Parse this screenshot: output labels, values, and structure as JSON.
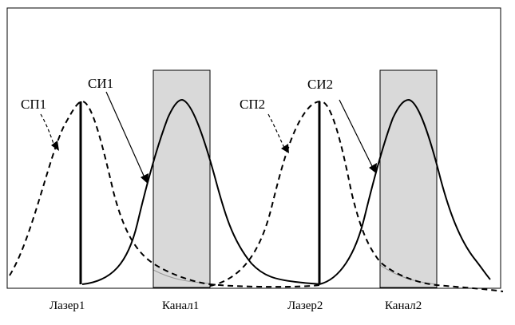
{
  "curves": {
    "sp1_label": "СП1",
    "si1_label": "СИ1",
    "sp2_label": "СП2",
    "si2_label": "СИ2"
  },
  "axis_labels": {
    "laser1": "Лазер1",
    "channel1": "Канал1",
    "laser2": "Лазер2",
    "channel2": "Канал2"
  },
  "colors": {
    "line": "#000000",
    "channel_fill": "#d9d9d9",
    "background": "#ffffff"
  }
}
